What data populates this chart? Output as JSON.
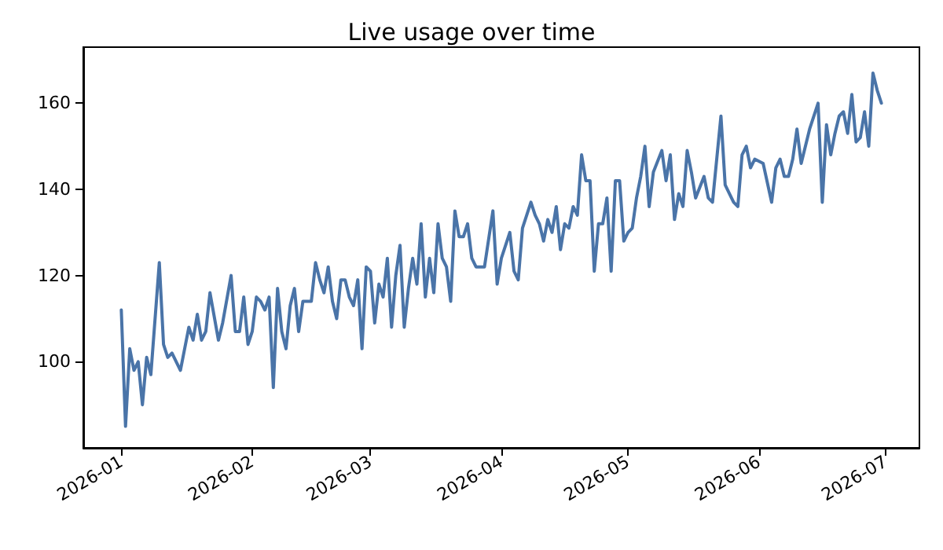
{
  "chart_data": {
    "type": "line",
    "title": "Live usage over time",
    "x": [
      "2026-01-01",
      "2026-01-02",
      "2026-01-03",
      "2026-01-04",
      "2026-01-05",
      "2026-01-06",
      "2026-01-07",
      "2026-01-08",
      "2026-01-10",
      "2026-01-11",
      "2026-01-12",
      "2026-01-13",
      "2026-01-15",
      "2026-01-17",
      "2026-01-18",
      "2026-01-19",
      "2026-01-20",
      "2026-01-21",
      "2026-01-22",
      "2026-01-24",
      "2026-01-25",
      "2026-01-27",
      "2026-01-28",
      "2026-01-29",
      "2026-01-30",
      "2026-01-31",
      "2026-02-01",
      "2026-02-02",
      "2026-02-03",
      "2026-02-04",
      "2026-02-05",
      "2026-02-06",
      "2026-02-07",
      "2026-02-08",
      "2026-02-09",
      "2026-02-10",
      "2026-02-11",
      "2026-02-12",
      "2026-02-13",
      "2026-02-15",
      "2026-02-16",
      "2026-02-17",
      "2026-02-18",
      "2026-02-19",
      "2026-02-20",
      "2026-02-21",
      "2026-02-22",
      "2026-02-23",
      "2026-02-24",
      "2026-02-25",
      "2026-02-26",
      "2026-02-27",
      "2026-02-28",
      "2026-03-01",
      "2026-03-02",
      "2026-03-03",
      "2026-03-04",
      "2026-03-05",
      "2026-03-06",
      "2026-03-07",
      "2026-03-08",
      "2026-03-09",
      "2026-03-10",
      "2026-03-11",
      "2026-03-12",
      "2026-03-13",
      "2026-03-14",
      "2026-03-15",
      "2026-03-16",
      "2026-03-17",
      "2026-03-18",
      "2026-03-19",
      "2026-03-20",
      "2026-03-21",
      "2026-03-22",
      "2026-03-23",
      "2026-03-24",
      "2026-03-25",
      "2026-03-26",
      "2026-03-28",
      "2026-03-30",
      "2026-03-31",
      "2026-04-01",
      "2026-04-03",
      "2026-04-04",
      "2026-04-05",
      "2026-04-06",
      "2026-04-08",
      "2026-04-09",
      "2026-04-10",
      "2026-04-11",
      "2026-04-12",
      "2026-04-13",
      "2026-04-14",
      "2026-04-15",
      "2026-04-16",
      "2026-04-17",
      "2026-04-18",
      "2026-04-19",
      "2026-04-20",
      "2026-04-21",
      "2026-04-22",
      "2026-04-23",
      "2026-04-24",
      "2026-04-25",
      "2026-04-26",
      "2026-04-27",
      "2026-04-28",
      "2026-04-29",
      "2026-04-30",
      "2026-05-01",
      "2026-05-02",
      "2026-05-03",
      "2026-05-04",
      "2026-05-05",
      "2026-05-06",
      "2026-05-07",
      "2026-05-09",
      "2026-05-10",
      "2026-05-11",
      "2026-05-12",
      "2026-05-13",
      "2026-05-14",
      "2026-05-15",
      "2026-05-16",
      "2026-05-17",
      "2026-05-19",
      "2026-05-20",
      "2026-05-21",
      "2026-05-23",
      "2026-05-24",
      "2026-05-26",
      "2026-05-27",
      "2026-05-28",
      "2026-05-29",
      "2026-05-30",
      "2026-05-31",
      "2026-06-02",
      "2026-06-04",
      "2026-06-05",
      "2026-06-06",
      "2026-06-07",
      "2026-06-08",
      "2026-06-09",
      "2026-06-10",
      "2026-06-11",
      "2026-06-13",
      "2026-06-15",
      "2026-06-16",
      "2026-06-17",
      "2026-06-18",
      "2026-06-19",
      "2026-06-20",
      "2026-06-21",
      "2026-06-22",
      "2026-06-23",
      "2026-06-24",
      "2026-06-25",
      "2026-06-26",
      "2026-06-27",
      "2026-06-28",
      "2026-06-29",
      "2026-06-30"
    ],
    "series": [
      {
        "color": "#4a74a8",
        "values": [
          112,
          85,
          103,
          98,
          100,
          90,
          101,
          97,
          123,
          104,
          101,
          102,
          98,
          108,
          105,
          111,
          105,
          107,
          116,
          105,
          109,
          120,
          107,
          107,
          115,
          104,
          107,
          115,
          114,
          112,
          115,
          94,
          117,
          107,
          103,
          113,
          117,
          107,
          114,
          114,
          123,
          119,
          116,
          122,
          114,
          110,
          119,
          119,
          115,
          113,
          119,
          103,
          122,
          121,
          109,
          118,
          115,
          124,
          108,
          120,
          127,
          108,
          117,
          124,
          118,
          132,
          115,
          124,
          116,
          132,
          124,
          122,
          114,
          135,
          129,
          129,
          132,
          124,
          122,
          122,
          135,
          118,
          124,
          130,
          121,
          119,
          131,
          137,
          134,
          132,
          128,
          133,
          130,
          136,
          126,
          132,
          131,
          136,
          134,
          148,
          142,
          142,
          121,
          132,
          132,
          138,
          121,
          142,
          142,
          128,
          130,
          131,
          138,
          143,
          150,
          136,
          144,
          149,
          142,
          148,
          133,
          139,
          136,
          149,
          144,
          138,
          143,
          138,
          137,
          157,
          141,
          137,
          136,
          148,
          150,
          145,
          147,
          146,
          137,
          145,
          147,
          143,
          143,
          147,
          154,
          146,
          154,
          160,
          137,
          155,
          148,
          153,
          157,
          158,
          153,
          162,
          151,
          152,
          158,
          150,
          167,
          163,
          160
        ]
      }
    ],
    "xlim": [
      "2025-12-23",
      "2026-07-09"
    ],
    "xticks": [
      {
        "value": "2026-01",
        "label": "2026-01"
      },
      {
        "value": "2026-02",
        "label": "2026-02"
      },
      {
        "value": "2026-03",
        "label": "2026-03"
      },
      {
        "value": "2026-04",
        "label": "2026-04"
      },
      {
        "value": "2026-05",
        "label": "2026-05"
      },
      {
        "value": "2026-06",
        "label": "2026-06"
      },
      {
        "value": "2026-07",
        "label": "2026-07"
      }
    ],
    "ylim": [
      80,
      173
    ],
    "yticks": [
      100,
      120,
      140,
      160
    ],
    "grid": false,
    "marker": "none",
    "line_style": "solid"
  }
}
